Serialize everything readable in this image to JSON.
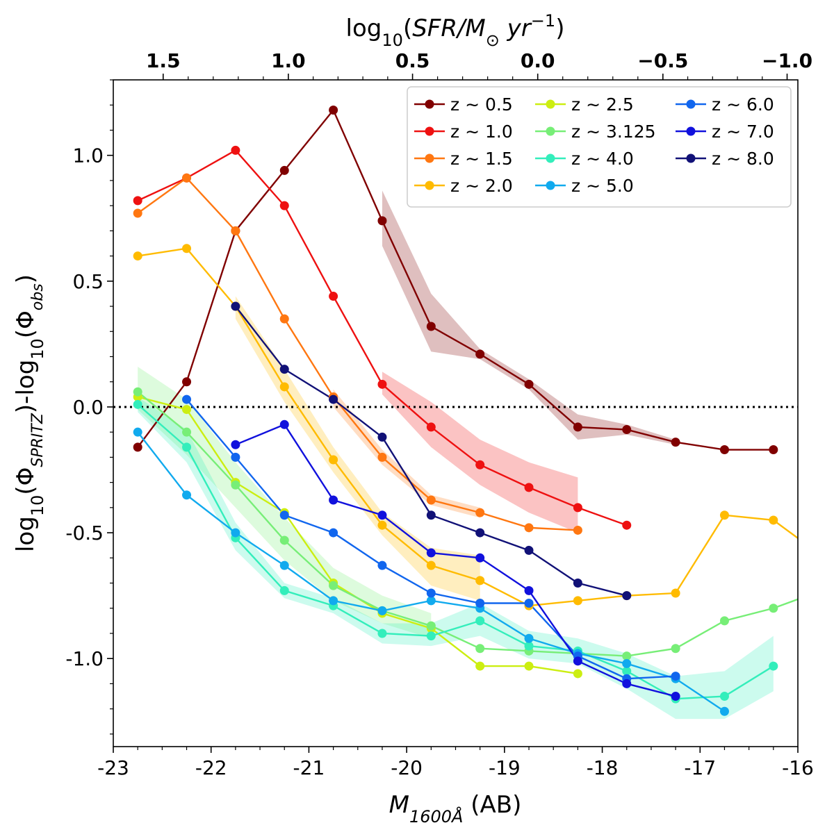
{
  "chart_data": {
    "type": "line",
    "xlabel_main": "M",
    "xlabel_sub": "1600Å",
    "xlabel_suffix": " (AB)",
    "ylabel": {
      "p1": "log",
      "p1sub": "10",
      "p2": "(Φ",
      "p2sub": "SPRITZ",
      "p3": ")-log",
      "p3sub": "10",
      "p4": "(Φ",
      "p4sub": "obs",
      "p5": ")"
    },
    "top_label": {
      "p1": "log",
      "p1sub": "10",
      "p2": "(",
      "p3": "SFR",
      "p4": "/M",
      "p4sub": "⊙",
      "p5": " yr",
      "p5sup": "−1",
      "p6": ")"
    },
    "xlim": [
      -23,
      -16
    ],
    "ylim": [
      -1.35,
      1.3
    ],
    "x_ticks": [
      -23,
      -22,
      -21,
      -20,
      -19,
      -18,
      -17,
      -16
    ],
    "x_tick_labels": [
      "-23",
      "-22",
      "-21",
      "-20",
      "-19",
      "-18",
      "-17",
      "-16"
    ],
    "y_ticks": [
      -1.0,
      -0.5,
      0.0,
      0.5,
      1.0
    ],
    "y_tick_labels": [
      "-1.0",
      "-0.5",
      "0.0",
      "0.5",
      "1.0"
    ],
    "top_ticks": [
      {
        "label": "1.5",
        "x": -22.49
      },
      {
        "label": "1.0",
        "x": -21.21
      },
      {
        "label": "0.5",
        "x": -19.94
      },
      {
        "label": "0.0",
        "x": -18.66
      },
      {
        "label": "−0.5",
        "x": -17.38
      },
      {
        "label": "−1.0",
        "x": -16.11
      }
    ],
    "reference_line": {
      "y": 0.0,
      "style": "dotted"
    },
    "legend": {
      "position": "top-right",
      "columns": 3
    },
    "series": [
      {
        "name": "z ∼ 0.5",
        "color": "#800000",
        "x": [
          -22.75,
          -22.25,
          -21.75,
          -21.25,
          -20.75,
          -20.25,
          -19.75,
          -19.25,
          -18.75,
          -18.25,
          -17.75,
          -17.25,
          -16.75,
          -16.25
        ],
        "y": [
          -0.16,
          0.1,
          0.7,
          0.94,
          1.18,
          0.74,
          0.32,
          0.21,
          0.09,
          -0.08,
          -0.09,
          -0.14,
          -0.17,
          -0.17
        ],
        "band": {
          "x": [
            -20.25,
            -19.75,
            -19.25,
            -18.75,
            -18.25,
            -17.75,
            -17.25
          ],
          "lo": [
            0.64,
            0.22,
            0.19,
            0.07,
            -0.13,
            -0.11,
            -0.15
          ],
          "hi": [
            0.86,
            0.45,
            0.23,
            0.11,
            -0.03,
            -0.07,
            -0.13
          ]
        }
      },
      {
        "name": "z ∼ 1.0",
        "color": "#ee1111",
        "x": [
          -22.75,
          -22.25,
          -21.75,
          -21.25,
          -20.75,
          -20.25,
          -19.75,
          -19.25,
          -18.75,
          -18.25,
          -17.75
        ],
        "y": [
          0.82,
          0.91,
          1.02,
          0.8,
          0.44,
          0.09,
          -0.08,
          -0.23,
          -0.32,
          -0.4,
          -0.47
        ],
        "band": {
          "x": [
            -20.25,
            -19.75,
            -19.25,
            -18.75,
            -18.25
          ],
          "lo": [
            0.05,
            -0.16,
            -0.31,
            -0.42,
            -0.5
          ],
          "hi": [
            0.14,
            0.02,
            -0.13,
            -0.22,
            -0.28
          ]
        }
      },
      {
        "name": "z ∼ 1.5",
        "color": "#ff7711",
        "x": [
          -22.75,
          -22.25,
          -21.75,
          -21.25,
          -20.75,
          -20.25,
          -19.75,
          -19.25,
          -18.75,
          -18.25
        ],
        "y": [
          0.77,
          0.91,
          0.7,
          0.35,
          0.04,
          -0.2,
          -0.37,
          -0.42,
          -0.48,
          -0.49
        ],
        "band": {
          "x": [
            -20.75,
            -20.25,
            -19.75,
            -19.25
          ],
          "lo": [
            0.0,
            -0.23,
            -0.39,
            -0.44
          ],
          "hi": [
            0.07,
            -0.17,
            -0.35,
            -0.4
          ]
        }
      },
      {
        "name": "z ∼ 2.0",
        "color": "#ffbb00",
        "x": [
          -22.75,
          -22.25,
          -21.75,
          -21.25,
          -20.75,
          -20.25,
          -19.75,
          -19.25,
          -18.75,
          -18.25,
          -17.75,
          -17.25,
          -16.75,
          -16.25,
          -15.9
        ],
        "y": [
          0.6,
          0.63,
          0.4,
          0.08,
          -0.21,
          -0.47,
          -0.63,
          -0.69,
          -0.79,
          -0.77,
          -0.75,
          -0.74,
          -0.43,
          -0.45,
          -0.55
        ],
        "band": {
          "x": [
            -21.75,
            -21.25,
            -20.75,
            -20.25,
            -19.75,
            -19.25
          ],
          "lo": [
            0.35,
            0.02,
            -0.26,
            -0.51,
            -0.71,
            -0.77
          ],
          "hi": [
            0.44,
            0.15,
            -0.16,
            -0.42,
            -0.56,
            -0.59
          ]
        }
      },
      {
        "name": "z ∼ 2.5",
        "color": "#ccee11",
        "x": [
          -22.75,
          -22.25,
          -21.75,
          -21.25,
          -20.75,
          -20.25,
          -19.75,
          -19.25,
          -18.75,
          -18.25
        ],
        "y": [
          0.04,
          -0.01,
          -0.3,
          -0.42,
          -0.7,
          -0.82,
          -0.88,
          -1.03,
          -1.03,
          -1.06
        ]
      },
      {
        "name": "z ∼ 3.125",
        "color": "#77ee77",
        "x": [
          -22.75,
          -22.25,
          -21.75,
          -21.25,
          -20.75,
          -20.25,
          -19.75,
          -19.25,
          -18.75,
          -18.25,
          -17.75,
          -17.25,
          -16.75,
          -16.25,
          -15.9
        ],
        "y": [
          0.06,
          -0.1,
          -0.31,
          -0.53,
          -0.71,
          -0.81,
          -0.87,
          -0.96,
          -0.97,
          -0.98,
          -0.99,
          -0.96,
          -0.85,
          -0.8,
          -0.75
        ],
        "band": {
          "x": [
            -22.75,
            -22.25,
            -21.75,
            -21.25,
            -20.75,
            -20.25,
            -19.75
          ],
          "lo": [
            -0.01,
            -0.19,
            -0.4,
            -0.61,
            -0.77,
            -0.86,
            -0.92
          ],
          "hi": [
            0.16,
            0.03,
            -0.22,
            -0.44,
            -0.64,
            -0.75,
            -0.82
          ]
        }
      },
      {
        "name": "z ∼ 4.0",
        "color": "#33eebb",
        "x": [
          -22.75,
          -22.25,
          -21.75,
          -21.25,
          -20.75,
          -20.25,
          -19.75,
          -19.25,
          -18.75,
          -18.25,
          -17.75,
          -17.25,
          -16.75,
          -16.25
        ],
        "y": [
          0.01,
          -0.16,
          -0.52,
          -0.73,
          -0.79,
          -0.9,
          -0.91,
          -0.85,
          -0.95,
          -0.97,
          -1.05,
          -1.16,
          -1.15,
          -1.03
        ],
        "band": {
          "x": [
            -22.75,
            -22.25,
            -21.75,
            -21.25,
            -20.75,
            -20.25,
            -19.75,
            -19.25,
            -18.75,
            -18.25,
            -17.75,
            -17.25,
            -16.75,
            -16.25
          ],
          "lo": [
            -0.02,
            -0.22,
            -0.57,
            -0.76,
            -0.82,
            -0.94,
            -0.95,
            -0.91,
            -1.0,
            -1.02,
            -1.12,
            -1.24,
            -1.24,
            -1.13
          ],
          "hi": [
            0.04,
            -0.09,
            -0.46,
            -0.7,
            -0.76,
            -0.86,
            -0.86,
            -0.78,
            -0.89,
            -0.92,
            -0.98,
            -1.07,
            -1.05,
            -0.91
          ]
        }
      },
      {
        "name": "z ∼ 5.0",
        "color": "#11aaee",
        "x": [
          -22.75,
          -22.25,
          -21.75,
          -21.25,
          -20.75,
          -20.25,
          -19.75,
          -19.25,
          -18.75,
          -18.25,
          -17.75,
          -17.25,
          -16.75
        ],
        "y": [
          -0.1,
          -0.35,
          -0.5,
          -0.63,
          -0.77,
          -0.81,
          -0.77,
          -0.8,
          -0.92,
          -0.98,
          -1.02,
          -1.08,
          -1.21
        ]
      },
      {
        "name": "z ∼ 6.0",
        "color": "#1166ee",
        "x": [
          -22.25,
          -21.75,
          -21.25,
          -20.75,
          -20.25,
          -19.75,
          -19.25,
          -18.75,
          -18.25,
          -17.75,
          -17.25
        ],
        "y": [
          0.03,
          -0.2,
          -0.43,
          -0.5,
          -0.63,
          -0.74,
          -0.78,
          -0.78,
          -0.99,
          -1.08,
          -1.07
        ]
      },
      {
        "name": "z ∼ 7.0",
        "color": "#1111dd",
        "x": [
          -21.75,
          -21.25,
          -20.75,
          -20.25,
          -19.75,
          -19.25,
          -18.75,
          -18.25,
          -17.75,
          -17.25
        ],
        "y": [
          -0.15,
          -0.07,
          -0.37,
          -0.43,
          -0.58,
          -0.6,
          -0.73,
          -1.01,
          -1.1,
          -1.15
        ]
      },
      {
        "name": "z ∼ 8.0",
        "color": "#111177",
        "x": [
          -21.75,
          -21.25,
          -20.75,
          -20.25,
          -19.75,
          -19.25,
          -18.75,
          -18.25,
          -17.75
        ],
        "y": [
          0.4,
          0.15,
          0.03,
          -0.12,
          -0.43,
          -0.5,
          -0.57,
          -0.7,
          -0.75
        ]
      }
    ]
  }
}
